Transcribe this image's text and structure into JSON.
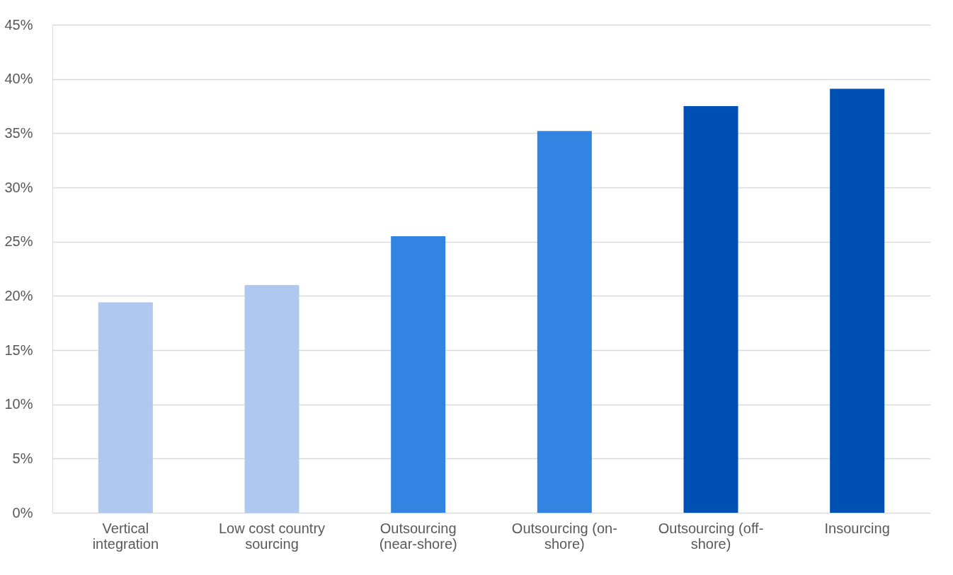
{
  "chart_data": {
    "type": "bar",
    "categories": [
      "Vertical integration",
      "Low cost country sourcing",
      "Outsourcing (near-shore)",
      "Outsourcing (on-shore)",
      "Outsourcing (off-shore)",
      "Insourcing"
    ],
    "values": [
      19.4,
      21.0,
      25.5,
      35.2,
      37.5,
      39.1
    ],
    "colors": [
      "#aec8f0",
      "#aec8f0",
      "#3383e3",
      "#3383e3",
      "#0050b4",
      "#0050b4"
    ],
    "ylim": [
      0,
      45
    ],
    "yticks": [
      {
        "value": 0,
        "label": "0%"
      },
      {
        "value": 5,
        "label": "5%"
      },
      {
        "value": 10,
        "label": "10%"
      },
      {
        "value": 15,
        "label": "15%"
      },
      {
        "value": 20,
        "label": "20%"
      },
      {
        "value": 25,
        "label": "25%"
      },
      {
        "value": 30,
        "label": "30%"
      },
      {
        "value": 35,
        "label": "35%"
      },
      {
        "value": 40,
        "label": "40%"
      },
      {
        "value": 45,
        "label": "45%"
      }
    ],
    "grid": "y"
  }
}
